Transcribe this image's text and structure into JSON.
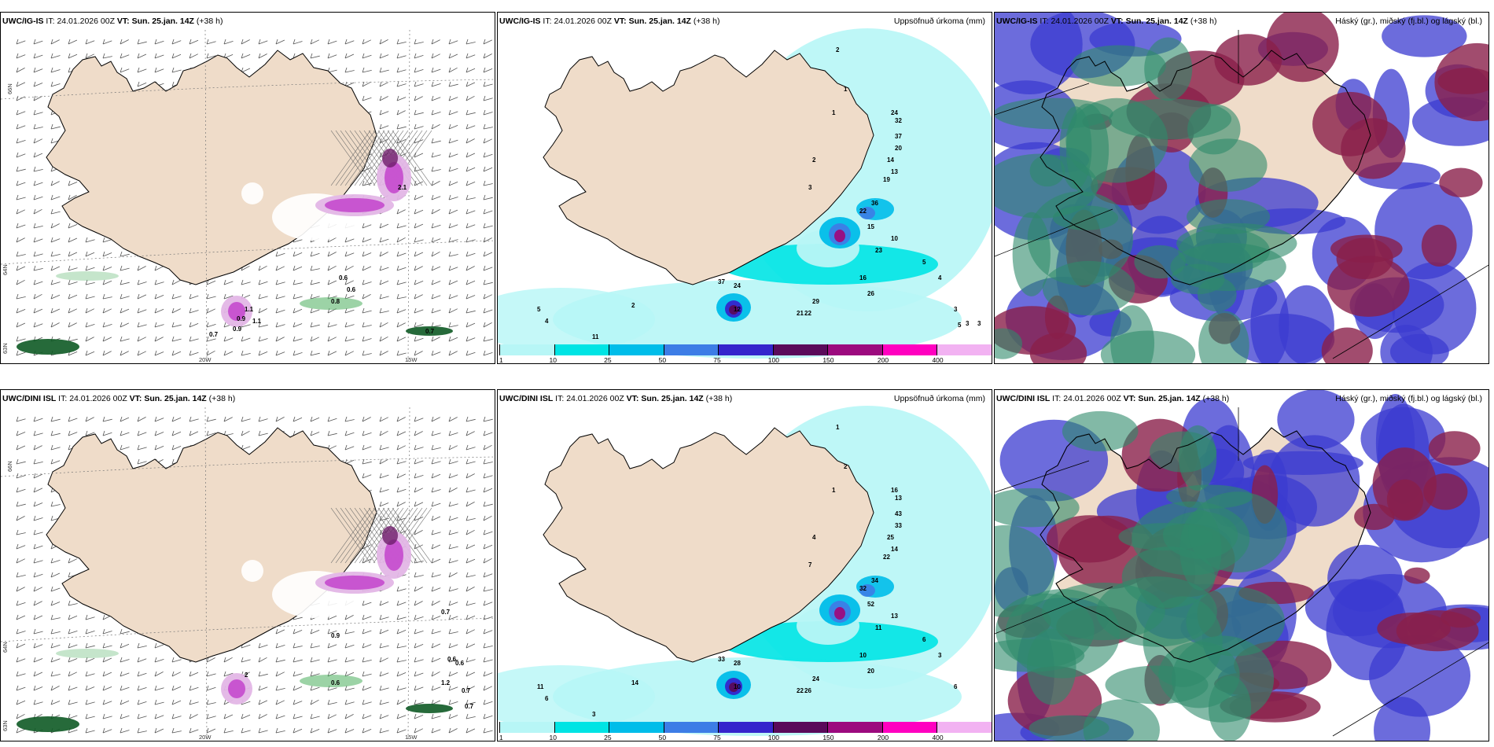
{
  "panels": [
    {
      "model": "UWC/IG-IS",
      "it_label": "IT:",
      "it": "24.01.2026 00Z",
      "vt_label": "VT:",
      "vt": "Sun. 25.jan. 14Z",
      "lead": "(+38 h)",
      "right_title": ""
    },
    {
      "model": "UWC/IG-IS",
      "it_label": "IT:",
      "it": "24.01.2026 00Z",
      "vt_label": "VT:",
      "vt": "Sun. 25.jan. 14Z",
      "lead": "(+38 h)",
      "right_title": "Uppsöfnuð úrkoma (mm)"
    },
    {
      "model": "UWC/IG-IS",
      "it_label": "IT:",
      "it": "24.01.2026 00Z",
      "vt_label": "VT:",
      "vt": "Sun. 25.jan. 14Z",
      "lead": "(+38 h)",
      "right_title": "Háský (gr.), miðský (fj.bl.) og lágský (bl.)"
    },
    {
      "model": "UWC/DINI ISL",
      "it_label": "IT:",
      "it": "24.01.2026 00Z",
      "vt_label": "VT:",
      "vt": "Sun. 25.jan. 14Z",
      "lead": "(+38 h)",
      "right_title": ""
    },
    {
      "model": "UWC/DINI ISL",
      "it_label": "IT:",
      "it": "24.01.2026 00Z",
      "vt_label": "VT:",
      "vt": "Sun. 25.jan. 14Z",
      "lead": "(+38 h)",
      "right_title": "Uppsöfnuð úrkoma (mm)"
    },
    {
      "model": "UWC/DINI ISL",
      "it_label": "IT:",
      "it": "24.01.2026 00Z",
      "vt_label": "VT:",
      "vt": "Sun. 25.jan. 14Z",
      "lead": "(+38 h)",
      "right_title": "Háský (gr.), miðský (fj.bl.) og lágský (bl.)"
    }
  ],
  "axis_labels": {
    "lat_66": "66N",
    "lat_64": "64N",
    "lat_63": "63N",
    "lon_20w": "20W",
    "lon_15w": "15W"
  },
  "wind_panel_values": {
    "top": [
      "0.6",
      "0.6",
      "0.8",
      "1.1",
      "0.9",
      "0.7",
      "0.7",
      "1.1",
      "0.9",
      "2.1"
    ],
    "bottom": [
      "0.7",
      "0.6",
      "0.6",
      "0.7",
      "1.2",
      "0.7",
      "0.6",
      "0.9",
      "2"
    ]
  },
  "precip_panel_values": {
    "top": [
      "2",
      "1",
      "1",
      "2",
      "3",
      "24",
      "32",
      "37",
      "20",
      "14",
      "13",
      "19",
      "36",
      "22",
      "15",
      "10",
      "23",
      "16",
      "26",
      "29",
      "22",
      "21",
      "24",
      "37",
      "12",
      "2",
      "5",
      "4",
      "11",
      "4",
      "5",
      "3",
      "5",
      "3",
      "3"
    ],
    "bottom": [
      "1",
      "2",
      "1",
      "4",
      "7",
      "16",
      "13",
      "43",
      "33",
      "25",
      "14",
      "22",
      "34",
      "32",
      "52",
      "13",
      "11",
      "10",
      "20",
      "24",
      "26",
      "22",
      "28",
      "33",
      "10",
      "14",
      "11",
      "6",
      "3",
      "3",
      "6",
      "6"
    ]
  },
  "colorbar": {
    "ticks": [
      "1",
      "10",
      "25",
      "50",
      "75",
      "100",
      "150",
      "200",
      "400"
    ],
    "colors": [
      "#b7f6f6",
      "#00e4e4",
      "#00bde9",
      "#3d7de6",
      "#3525cc",
      "#5a0a5a",
      "#9c0a7e",
      "#ff00c0",
      "#f2b2f2"
    ]
  },
  "colors": {
    "land": "#efdcc9",
    "snow_light": "#e3b6e6",
    "snow_mid": "#c64fcf",
    "snow_dark": "#6e1d6a",
    "rain_green": "#5ab56a",
    "rain_dark_green": "#0e5a25",
    "cloud_high": "#2f8a6a",
    "cloud_mid": "#8a1f4a",
    "cloud_low": "#3b3bd0"
  }
}
